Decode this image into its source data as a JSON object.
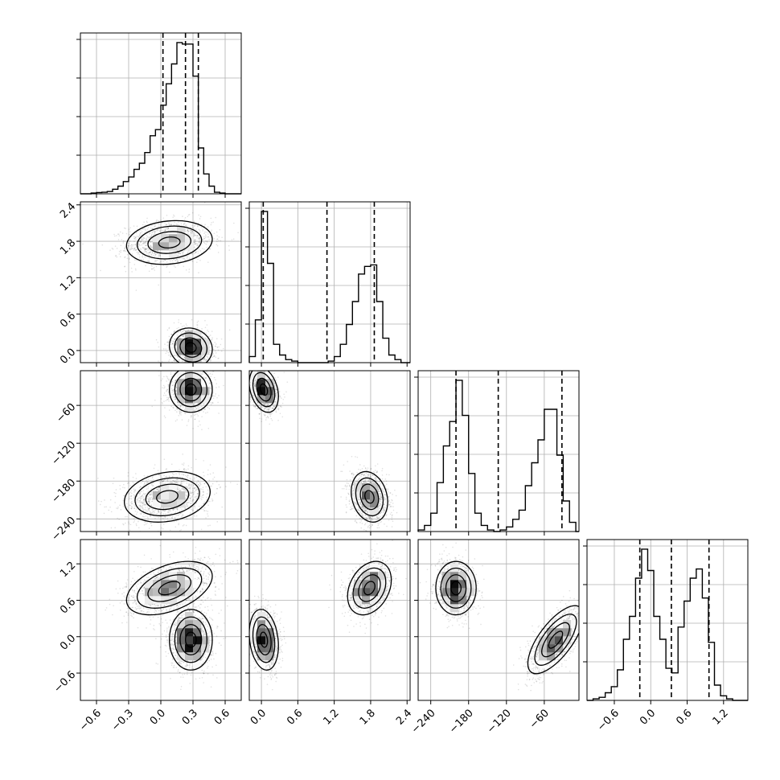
{
  "chart_data": {
    "type": "corner",
    "description_kind": "corner plot of 4 parameters: 1D histograms on diagonal, 2D density contours below",
    "parameters": [
      {
        "range": [
          -0.75,
          0.75
        ],
        "ticks": [
          -0.6,
          -0.3,
          0.0,
          0.3,
          0.6
        ],
        "tick_labels": [
          "−0.6",
          "−0.3",
          "0.0",
          "0.3",
          "0.6"
        ],
        "quantiles": [
          0.02,
          0.23,
          0.35
        ]
      },
      {
        "range": [
          -0.2,
          2.45
        ],
        "ticks": [
          0.0,
          0.6,
          1.2,
          1.8,
          2.4
        ],
        "tick_labels": [
          "0.0",
          "0.6",
          "1.2",
          "1.8",
          "2.4"
        ],
        "quantiles": [
          0.03,
          1.08,
          1.86
        ]
      },
      {
        "range": [
          -260,
          -5
        ],
        "ticks": [
          -240,
          -180,
          -120,
          -60
        ],
        "tick_labels": [
          "−240",
          "−180",
          "−120",
          "−60"
        ],
        "quantiles": [
          -200,
          -133,
          -32
        ]
      },
      {
        "range": [
          -1.05,
          1.6
        ],
        "ticks": [
          -0.6,
          0.0,
          0.6,
          1.2
        ],
        "tick_labels": [
          "−0.6",
          "0.0",
          "0.6",
          "1.2"
        ],
        "quantiles": [
          -0.18,
          0.34,
          0.96
        ]
      }
    ],
    "diagonal_histograms": [
      {
        "param": 0,
        "bin_edges": [
          -0.75,
          -0.7,
          -0.65,
          -0.6,
          -0.55,
          -0.5,
          -0.45,
          -0.4,
          -0.35,
          -0.3,
          -0.25,
          -0.2,
          -0.15,
          -0.1,
          -0.05,
          0.0,
          0.05,
          0.1,
          0.15,
          0.2,
          0.25,
          0.3,
          0.35,
          0.4,
          0.45,
          0.5,
          0.55,
          0.6,
          0.65,
          0.7,
          0.75
        ],
        "counts": [
          0,
          0,
          0.005,
          0.008,
          0.01,
          0.015,
          0.03,
          0.05,
          0.08,
          0.11,
          0.16,
          0.2,
          0.27,
          0.38,
          0.42,
          0.58,
          0.72,
          0.85,
          0.99,
          0.98,
          0.98,
          0.77,
          0.3,
          0.13,
          0.05,
          0.01,
          0.005,
          0,
          0,
          0
        ]
      },
      {
        "param": 1,
        "bin_edges": [
          -0.2,
          -0.1,
          0.0,
          0.1,
          0.2,
          0.3,
          0.4,
          0.5,
          0.6,
          0.7,
          0.8,
          0.9,
          1.0,
          1.1,
          1.2,
          1.3,
          1.4,
          1.5,
          1.6,
          1.7,
          1.8,
          1.9,
          2.0,
          2.1,
          2.2,
          2.3,
          2.4,
          2.45
        ],
        "counts": [
          0.04,
          0.28,
          0.99,
          0.65,
          0.12,
          0.05,
          0.02,
          0.01,
          0,
          0,
          0,
          0,
          0,
          0.01,
          0.04,
          0.12,
          0.25,
          0.4,
          0.58,
          0.63,
          0.64,
          0.4,
          0.16,
          0.05,
          0.02,
          0,
          0
        ]
      },
      {
        "param": 2,
        "bin_edges": [
          -260,
          -250,
          -240,
          -230,
          -220,
          -210,
          -200,
          -190,
          -180,
          -170,
          -160,
          -150,
          -140,
          -130,
          -120,
          -110,
          -100,
          -90,
          -80,
          -70,
          -60,
          -50,
          -40,
          -30,
          -20,
          -10,
          -5
        ],
        "counts": [
          0.01,
          0.04,
          0.12,
          0.32,
          0.56,
          0.72,
          0.99,
          0.76,
          0.38,
          0.12,
          0.04,
          0.01,
          0,
          0.01,
          0.03,
          0.08,
          0.14,
          0.3,
          0.45,
          0.6,
          0.8,
          0.8,
          0.5,
          0.2,
          0.06,
          0
        ]
      },
      {
        "param": 3,
        "bin_edges": [
          -1.05,
          -0.95,
          -0.85,
          -0.75,
          -0.65,
          -0.55,
          -0.45,
          -0.35,
          -0.25,
          -0.15,
          -0.05,
          0.05,
          0.15,
          0.25,
          0.35,
          0.45,
          0.55,
          0.65,
          0.75,
          0.85,
          0.95,
          1.05,
          1.15,
          1.25,
          1.35,
          1.45,
          1.55,
          1.6
        ],
        "counts": [
          0,
          0.01,
          0.02,
          0.05,
          0.09,
          0.2,
          0.4,
          0.55,
          0.8,
          0.99,
          0.85,
          0.55,
          0.4,
          0.21,
          0.18,
          0.48,
          0.65,
          0.8,
          0.86,
          0.67,
          0.38,
          0.1,
          0.03,
          0.01,
          0,
          0,
          0
        ]
      }
    ],
    "pair_panels": [
      {
        "x_param": 0,
        "y_param": 1,
        "blobs": [
          {
            "center": [
              0.08,
              1.78
            ],
            "sx": 0.2,
            "sy": 0.18,
            "rho": 0.15,
            "n": 1400
          },
          {
            "center": [
              0.28,
              0.05
            ],
            "sx": 0.1,
            "sy": 0.16,
            "rho": -0.1,
            "n": 1200
          }
        ]
      },
      {
        "x_param": 0,
        "y_param": 2,
        "blobs": [
          {
            "center": [
              0.28,
              -35
            ],
            "sx": 0.1,
            "sy": 18,
            "rho": 0.0,
            "n": 1300
          },
          {
            "center": [
              0.06,
              -205
            ],
            "sx": 0.2,
            "sy": 20,
            "rho": 0.2,
            "n": 1300
          }
        ]
      },
      {
        "x_param": 0,
        "y_param": 3,
        "blobs": [
          {
            "center": [
              0.08,
              0.8
            ],
            "sx": 0.2,
            "sy": 0.22,
            "rho": 0.45,
            "n": 1300
          },
          {
            "center": [
              0.28,
              -0.05
            ],
            "sx": 0.1,
            "sy": 0.25,
            "rho": 0.0,
            "n": 1300
          }
        ]
      },
      {
        "x_param": 1,
        "y_param": 2,
        "blobs": [
          {
            "center": [
              0.04,
              -35
            ],
            "sx": 0.12,
            "sy": 18,
            "rho": -0.3,
            "n": 1300
          },
          {
            "center": [
              1.78,
              -205
            ],
            "sx": 0.15,
            "sy": 20,
            "rho": -0.2,
            "n": 1300
          }
        ]
      },
      {
        "x_param": 1,
        "y_param": 3,
        "blobs": [
          {
            "center": [
              0.04,
              -0.05
            ],
            "sx": 0.12,
            "sy": 0.25,
            "rho": -0.2,
            "n": 1300
          },
          {
            "center": [
              1.78,
              0.8
            ],
            "sx": 0.18,
            "sy": 0.22,
            "rho": 0.3,
            "n": 1300
          }
        ]
      },
      {
        "x_param": 2,
        "y_param": 3,
        "blobs": [
          {
            "center": [
              -200,
              0.8
            ],
            "sx": 16,
            "sy": 0.22,
            "rho": 0.0,
            "n": 1300
          },
          {
            "center": [
              -42,
              -0.05
            ],
            "sx": 22,
            "sy": 0.28,
            "rho": 0.7,
            "n": 1300
          }
        ]
      }
    ],
    "grid": true,
    "quantile_line_style": "dashed black",
    "contour_levels_sigma": [
      0.5,
      1.0,
      1.5,
      2.0
    ],
    "colors": {
      "hist_line": "#000000",
      "grid": "#b0b0b0",
      "points": "#000000",
      "density": "#000000"
    }
  }
}
